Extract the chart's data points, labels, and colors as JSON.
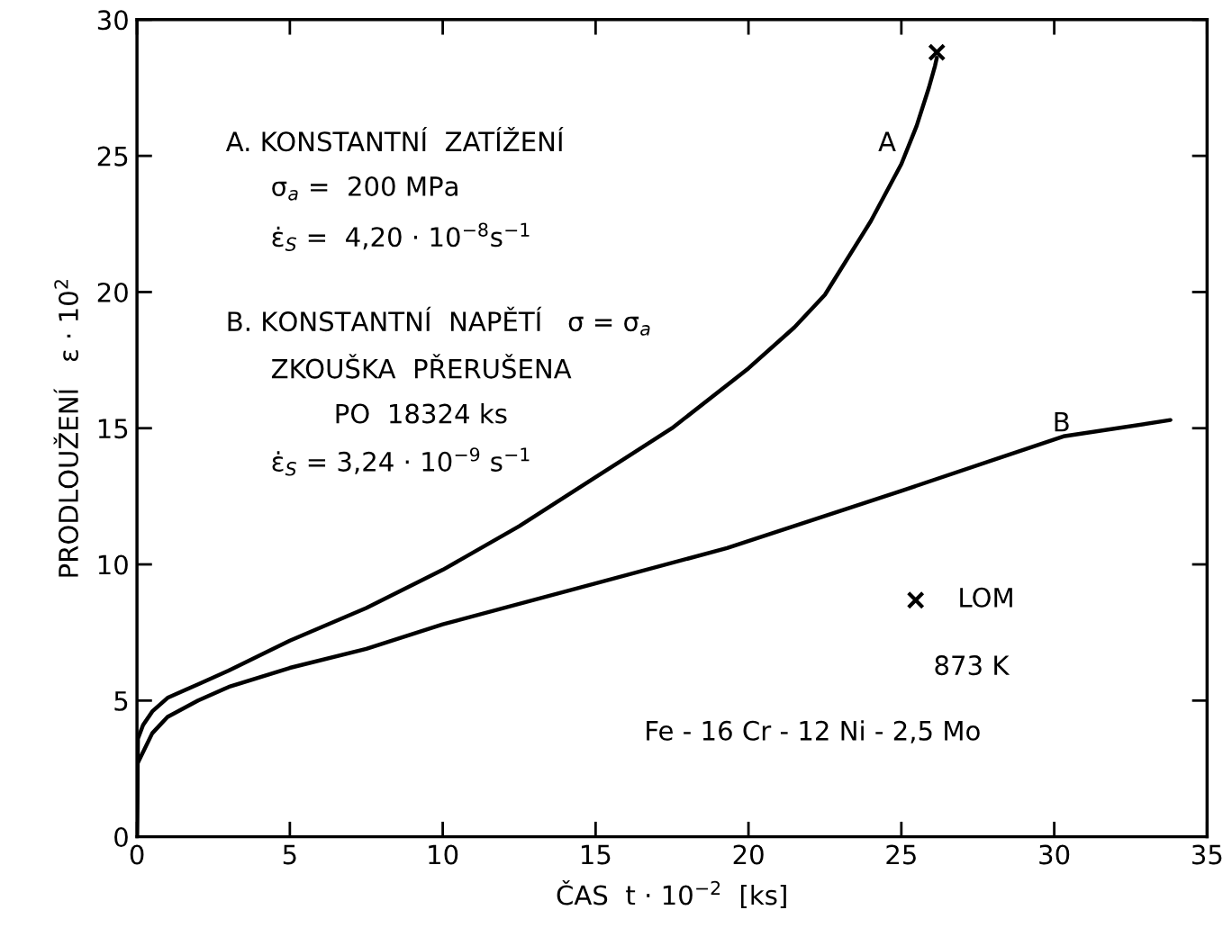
{
  "chart_data": {
    "type": "line",
    "xlabel": "ČAS  t · 10$^{−2}$  [ks]",
    "ylabel": "PRODLOUŽENÍ   ε · 10$^{2}$",
    "xlim": [
      0,
      35
    ],
    "ylim": [
      0,
      30
    ],
    "xticks": [
      0,
      5,
      10,
      15,
      20,
      25,
      30,
      35
    ],
    "yticks": [
      0,
      5,
      10,
      15,
      20,
      25,
      30
    ],
    "grid": false,
    "legend": "right",
    "series": [
      {
        "color": "#000000",
        "x": [
          0,
          0.03,
          0.2,
          0.5,
          1,
          2,
          3,
          5,
          7.5,
          10,
          12.5,
          15,
          17.5,
          20,
          21.5,
          22.5,
          24,
          25,
          25.5,
          25.9,
          26.1,
          26.16
        ],
        "values": [
          0,
          3.6,
          4.1,
          4.6,
          5.1,
          5.6,
          6.1,
          7.2,
          8.4,
          9.8,
          11.4,
          13.2,
          15.0,
          17.2,
          18.7,
          19.9,
          22.6,
          24.7,
          26.1,
          27.5,
          28.3,
          28.6
        ]
      },
      {
        "color": "#000000",
        "x": [
          0,
          0.02,
          0.5,
          1,
          2,
          3,
          5,
          7.5,
          10,
          15,
          19.3,
          25,
          30.3,
          33.8
        ],
        "values": [
          0,
          2.7,
          3.8,
          4.4,
          5.0,
          5.5,
          6.2,
          6.9,
          7.8,
          9.3,
          10.6,
          12.7,
          14.7,
          15.3
        ]
      },
      {
        "name": "LOM",
        "type": "scatter",
        "marker": "cross",
        "color": "#000000",
        "x": [
          26.16
        ],
        "values": [
          28.8
        ]
      }
    ],
    "annotations": [
      "A",
      "B",
      "A. KONSTANTNÍ  ZATÍŽENÍ",
      "σ$_{a}$ =  200 MPa",
      "ε̇$_{S}$ =  4,20 · 10$^{−8}$s$^{−1}$",
      "B. KONSTANTNÍ  NAPĚTÍ   σ = σ$_{a}$",
      "ZKOUŠKA  PŘERUŠENA",
      "PO  18324 ks",
      "ε̇$_{S}$ = 3,24 · 10$^{−9}$ s$^{−1}$",
      "873 K",
      "Fe - 16 Cr - 12 Ni - 2,5 Mo"
    ]
  }
}
